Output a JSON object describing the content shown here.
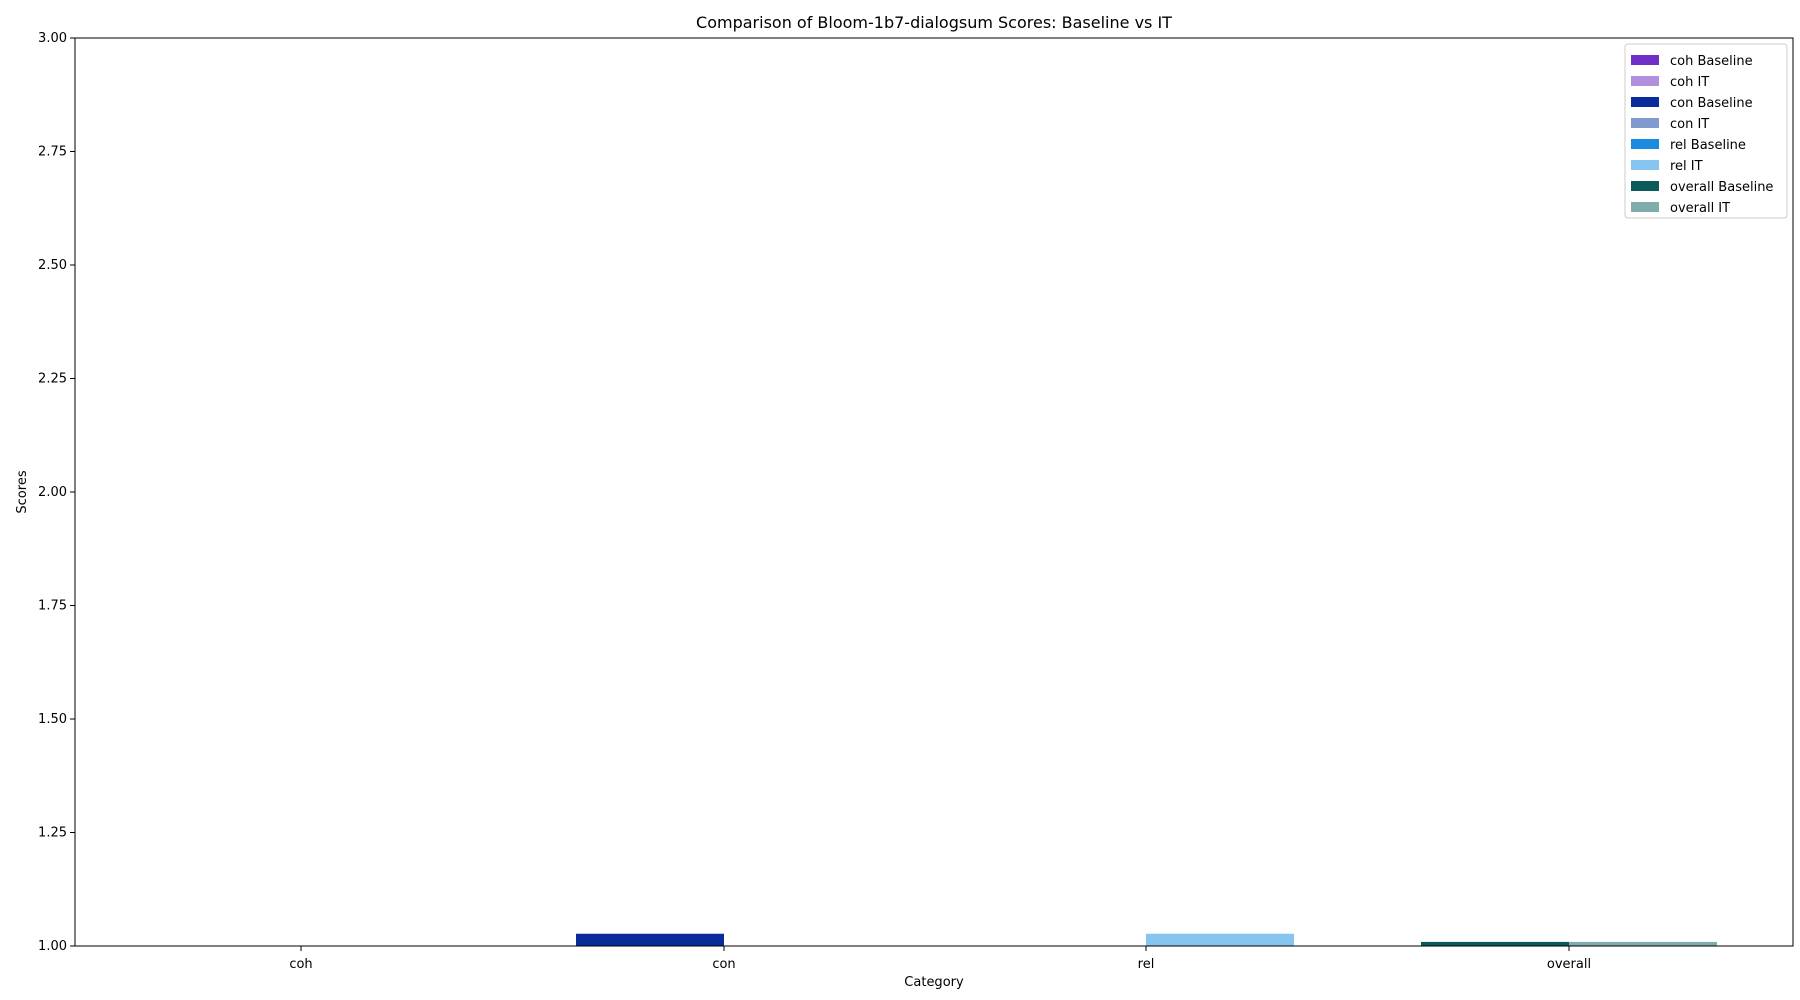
{
  "chart_data": {
    "type": "bar",
    "title": "Comparison of Bloom-1b7-dialogsum Scores: Baseline vs IT",
    "xlabel": "Category",
    "ylabel": "Scores",
    "ylim": [
      1.0,
      3.0
    ],
    "yticks": [
      "1.00",
      "1.25",
      "1.50",
      "1.75",
      "2.00",
      "2.25",
      "2.50",
      "2.75",
      "3.00"
    ],
    "categories": [
      "coh",
      "con",
      "rel",
      "overall"
    ],
    "series": [
      {
        "name": "coh Baseline",
        "category": "coh",
        "group": "Baseline",
        "value": 1.0,
        "color": "#7030c8"
      },
      {
        "name": "coh IT",
        "category": "coh",
        "group": "IT",
        "value": 1.0,
        "color": "#b190e0"
      },
      {
        "name": "con Baseline",
        "category": "con",
        "group": "Baseline",
        "value": 1.027,
        "color": "#0a2c9a"
      },
      {
        "name": "con IT",
        "category": "con",
        "group": "IT",
        "value": 1.0,
        "color": "#8099cf"
      },
      {
        "name": "rel Baseline",
        "category": "rel",
        "group": "Baseline",
        "value": 1.0,
        "color": "#1a8be0"
      },
      {
        "name": "rel IT",
        "category": "rel",
        "group": "IT",
        "value": 1.027,
        "color": "#85c5f0"
      },
      {
        "name": "overall Baseline",
        "category": "overall",
        "group": "Baseline",
        "value": 1.009,
        "color": "#0d5a5a"
      },
      {
        "name": "overall IT",
        "category": "overall",
        "group": "IT",
        "value": 1.009,
        "color": "#80acac"
      }
    ],
    "grid": false,
    "legend_position": "top-right"
  }
}
